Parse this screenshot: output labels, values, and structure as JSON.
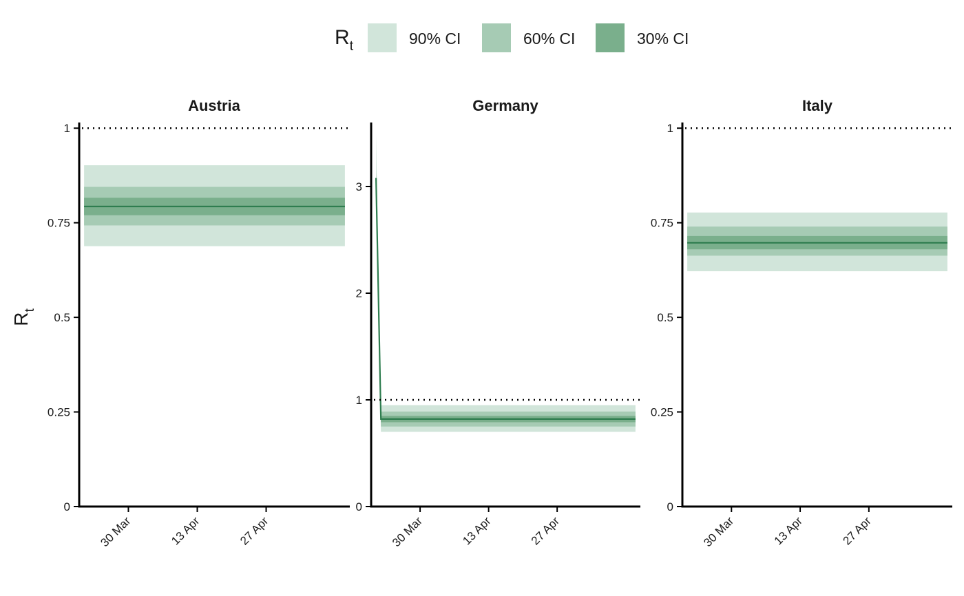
{
  "colors": {
    "ci90": "#d1e5da",
    "ci60": "#a6cbb4",
    "ci30": "#7aaf8c",
    "median": "#2e7d4f",
    "axis": "#000000",
    "text": "#1a1a1a"
  },
  "legend": {
    "title_main": "R",
    "title_sub": "t",
    "position": "top",
    "items": [
      {
        "label": "90% CI",
        "color_key": "ci90"
      },
      {
        "label": "60% CI",
        "color_key": "ci60"
      },
      {
        "label": "30% CI",
        "color_key": "ci30"
      }
    ]
  },
  "chart_data": {
    "type": "area",
    "ylabel_main": "R",
    "ylabel_sub": "t",
    "x_ticks": [
      "2020-03-30",
      "2020-04-13",
      "2020-04-27"
    ],
    "x_tick_labels": [
      "30 Mar",
      "13 Apr",
      "27 Apr"
    ],
    "panels": [
      {
        "title": "Austria",
        "ylim": [
          0,
          1.015
        ],
        "y_ticks": [
          0,
          0.25,
          0.5,
          0.75,
          1
        ],
        "y_tick_labels": [
          "0",
          "0.25",
          "0.5",
          "0.75",
          "1"
        ],
        "xlim": [
          "2020-03-20",
          "2020-05-14"
        ],
        "reference_line": 1,
        "x": [
          "2020-03-21",
          "2020-05-13"
        ],
        "median": [
          0.793,
          0.793
        ],
        "ci30": [
          [
            0.77,
            0.816
          ],
          [
            0.77,
            0.816
          ]
        ],
        "ci60": [
          [
            0.743,
            0.845
          ],
          [
            0.743,
            0.845
          ]
        ],
        "ci90": [
          [
            0.688,
            0.902
          ],
          [
            0.688,
            0.902
          ]
        ]
      },
      {
        "title": "Germany",
        "ylim": [
          0,
          3.6
        ],
        "y_ticks": [
          0,
          1,
          2,
          3
        ],
        "y_tick_labels": [
          "0",
          "1",
          "2",
          "3"
        ],
        "xlim": [
          "2020-03-20",
          "2020-05-14"
        ],
        "reference_line": 1,
        "x": [
          "2020-03-21",
          "2020-03-22",
          "2020-05-13"
        ],
        "median": [
          3.08,
          0.82,
          0.82
        ],
        "ci30": [
          [
            3.04,
            3.12
          ],
          [
            0.79,
            0.85
          ],
          [
            0.79,
            0.85
          ]
        ],
        "ci60": [
          [
            3.0,
            3.18
          ],
          [
            0.75,
            0.89
          ],
          [
            0.75,
            0.89
          ]
        ],
        "ci90": [
          [
            2.9,
            3.5
          ],
          [
            0.7,
            0.95
          ],
          [
            0.7,
            0.95
          ]
        ]
      },
      {
        "title": "Italy",
        "ylim": [
          0,
          1.015
        ],
        "y_ticks": [
          0,
          0.25,
          0.5,
          0.75,
          1
        ],
        "y_tick_labels": [
          "0",
          "0.25",
          "0.5",
          "0.75",
          "1"
        ],
        "xlim": [
          "2020-03-20",
          "2020-05-14"
        ],
        "reference_line": 1,
        "x": [
          "2020-03-21",
          "2020-05-13"
        ],
        "median": [
          0.697,
          0.697
        ],
        "ci30": [
          [
            0.68,
            0.715
          ],
          [
            0.68,
            0.715
          ]
        ],
        "ci60": [
          [
            0.663,
            0.74
          ],
          [
            0.663,
            0.74
          ]
        ],
        "ci90": [
          [
            0.622,
            0.777
          ],
          [
            0.622,
            0.777
          ]
        ]
      }
    ]
  }
}
